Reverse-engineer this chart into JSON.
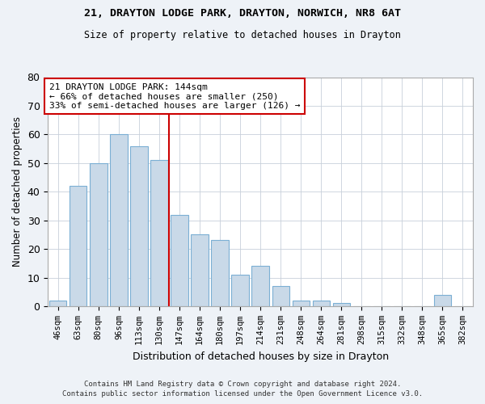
{
  "title1": "21, DRAYTON LODGE PARK, DRAYTON, NORWICH, NR8 6AT",
  "title2": "Size of property relative to detached houses in Drayton",
  "xlabel": "Distribution of detached houses by size in Drayton",
  "ylabel": "Number of detached properties",
  "bar_labels": [
    "46sqm",
    "63sqm",
    "80sqm",
    "96sqm",
    "113sqm",
    "130sqm",
    "147sqm",
    "164sqm",
    "180sqm",
    "197sqm",
    "214sqm",
    "231sqm",
    "248sqm",
    "264sqm",
    "281sqm",
    "298sqm",
    "315sqm",
    "332sqm",
    "348sqm",
    "365sqm",
    "382sqm"
  ],
  "bar_values": [
    2,
    42,
    50,
    60,
    56,
    51,
    32,
    25,
    23,
    11,
    14,
    7,
    2,
    2,
    1,
    0,
    0,
    0,
    0,
    4,
    0
  ],
  "bar_color": "#c9d9e8",
  "bar_edgecolor": "#7bafd4",
  "vline_x": 6.0,
  "vline_color": "#cc0000",
  "annotation_text": "21 DRAYTON LODGE PARK: 144sqm\n← 66% of detached houses are smaller (250)\n33% of semi-detached houses are larger (126) →",
  "annotation_box_color": "#ffffff",
  "annotation_box_edgecolor": "#cc0000",
  "ylim": [
    0,
    80
  ],
  "yticks": [
    0,
    10,
    20,
    30,
    40,
    50,
    60,
    70,
    80
  ],
  "footer1": "Contains HM Land Registry data © Crown copyright and database right 2024.",
  "footer2": "Contains public sector information licensed under the Open Government Licence v3.0.",
  "bg_color": "#eef2f7",
  "plot_bg_color": "#ffffff",
  "grid_color": "#c8d0da"
}
